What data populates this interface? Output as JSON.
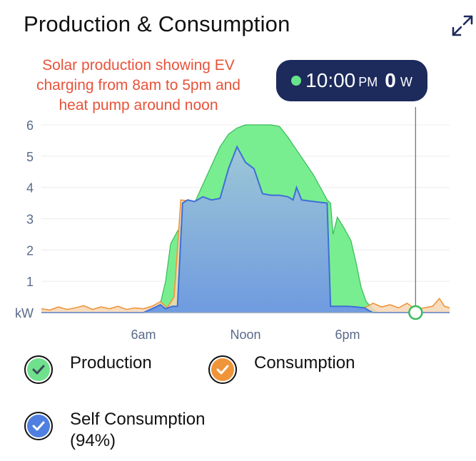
{
  "header": {
    "title": "Production & Consumption"
  },
  "annotation": {
    "lines": [
      "Solar production showing EV",
      "charging from 8am to 5pm and",
      "heat pump around noon"
    ]
  },
  "tooltip": {
    "time": "10:00",
    "ampm": "PM",
    "value": "0",
    "unit": "W"
  },
  "legend": [
    {
      "label": "Production",
      "label2": "",
      "color": "#6fe08c"
    },
    {
      "label": "Consumption",
      "label2": "",
      "color": "#f0943a"
    },
    {
      "label": "Self Consumption",
      "label2": "(94%)",
      "color": "#4f7fe0"
    }
  ],
  "chart_data": {
    "type": "area",
    "ylabel": "kW",
    "yticks": [
      "1",
      "2",
      "3",
      "4",
      "5",
      "6"
    ],
    "ylim": [
      0,
      6
    ],
    "xlim": [
      0,
      24
    ],
    "xticks": [
      {
        "label": "6am",
        "x": 6
      },
      {
        "label": "Noon",
        "x": 12
      },
      {
        "label": "6pm",
        "x": 18
      }
    ],
    "cursor_x": 22,
    "grid": true,
    "series": [
      {
        "name": "Production",
        "color": "#6fe08c",
        "points": [
          [
            0,
            0
          ],
          [
            6.3,
            0
          ],
          [
            6.6,
            0.1
          ],
          [
            7.0,
            0.3
          ],
          [
            7.3,
            1.0
          ],
          [
            7.6,
            2.2
          ],
          [
            8.0,
            2.6
          ],
          [
            8.5,
            3.0
          ],
          [
            9.0,
            3.5
          ],
          [
            9.5,
            4.1
          ],
          [
            10.0,
            4.7
          ],
          [
            10.5,
            5.3
          ],
          [
            11.0,
            5.7
          ],
          [
            11.5,
            5.9
          ],
          [
            12.0,
            6.0
          ],
          [
            12.5,
            6.0
          ],
          [
            13.0,
            6.0
          ],
          [
            13.5,
            6.0
          ],
          [
            14.0,
            5.95
          ],
          [
            14.5,
            5.6
          ],
          [
            15.0,
            5.2
          ],
          [
            15.5,
            4.8
          ],
          [
            16.0,
            4.4
          ],
          [
            16.5,
            3.9
          ],
          [
            16.8,
            3.6
          ],
          [
            17.0,
            3.5
          ],
          [
            17.15,
            2.5
          ],
          [
            17.4,
            3.05
          ],
          [
            17.8,
            2.7
          ],
          [
            18.2,
            2.3
          ],
          [
            18.5,
            1.6
          ],
          [
            18.8,
            0.8
          ],
          [
            19.1,
            0.35
          ],
          [
            19.5,
            0.1
          ],
          [
            19.8,
            0
          ],
          [
            24,
            0
          ]
        ]
      },
      {
        "name": "Consumption",
        "color": "#f0943a",
        "points": [
          [
            0,
            0.12
          ],
          [
            0.5,
            0.08
          ],
          [
            1,
            0.18
          ],
          [
            1.5,
            0.1
          ],
          [
            2,
            0.15
          ],
          [
            2.5,
            0.22
          ],
          [
            3,
            0.1
          ],
          [
            3.5,
            0.18
          ],
          [
            4,
            0.12
          ],
          [
            4.5,
            0.2
          ],
          [
            5,
            0.1
          ],
          [
            5.5,
            0.15
          ],
          [
            6,
            0.12
          ],
          [
            6.5,
            0.2
          ],
          [
            7.0,
            0.35
          ],
          [
            7.4,
            0.15
          ],
          [
            7.8,
            0.5
          ],
          [
            8.2,
            3.6
          ],
          [
            9.0,
            3.55
          ],
          [
            9.5,
            3.7
          ],
          [
            10.0,
            3.6
          ],
          [
            10.5,
            3.65
          ],
          [
            11.0,
            4.6
          ],
          [
            11.5,
            5.3
          ],
          [
            12.0,
            4.8
          ],
          [
            12.5,
            4.6
          ],
          [
            13.0,
            3.8
          ],
          [
            13.5,
            3.75
          ],
          [
            14.0,
            3.75
          ],
          [
            14.5,
            3.7
          ],
          [
            14.8,
            3.6
          ],
          [
            15.0,
            4.0
          ],
          [
            15.3,
            3.6
          ],
          [
            16.0,
            3.55
          ],
          [
            16.8,
            3.5
          ],
          [
            17.0,
            0.2
          ],
          [
            17.5,
            0.2
          ],
          [
            18.0,
            0.2
          ],
          [
            18.5,
            0.18
          ],
          [
            19.0,
            0.15
          ],
          [
            19.5,
            0.3
          ],
          [
            20.0,
            0.18
          ],
          [
            20.5,
            0.25
          ],
          [
            21.0,
            0.15
          ],
          [
            21.5,
            0.3
          ],
          [
            22.0,
            0.1
          ],
          [
            22.5,
            0.15
          ],
          [
            23.0,
            0.2
          ],
          [
            23.4,
            0.45
          ],
          [
            23.7,
            0.2
          ],
          [
            24,
            0.15
          ]
        ]
      },
      {
        "name": "Self Consumption",
        "color": "#4f7fe0",
        "points": [
          [
            0,
            0
          ],
          [
            6.0,
            0
          ],
          [
            6.5,
            0.12
          ],
          [
            7.0,
            0.25
          ],
          [
            7.3,
            0.12
          ],
          [
            7.7,
            0.2
          ],
          [
            8.0,
            0.2
          ],
          [
            8.3,
            3.5
          ],
          [
            8.6,
            3.6
          ],
          [
            9.0,
            3.55
          ],
          [
            9.5,
            3.7
          ],
          [
            10.0,
            3.6
          ],
          [
            10.5,
            3.65
          ],
          [
            11.0,
            4.6
          ],
          [
            11.5,
            5.3
          ],
          [
            12.0,
            4.8
          ],
          [
            12.5,
            4.6
          ],
          [
            13.0,
            3.8
          ],
          [
            13.5,
            3.75
          ],
          [
            14.0,
            3.75
          ],
          [
            14.5,
            3.7
          ],
          [
            14.8,
            3.6
          ],
          [
            15.0,
            4.0
          ],
          [
            15.3,
            3.6
          ],
          [
            16.0,
            3.55
          ],
          [
            16.8,
            3.5
          ],
          [
            17.0,
            0.2
          ],
          [
            17.5,
            0.2
          ],
          [
            18.0,
            0.2
          ],
          [
            18.5,
            0.18
          ],
          [
            19.0,
            0.15
          ],
          [
            19.3,
            0.05
          ],
          [
            19.5,
            0
          ],
          [
            24,
            0
          ]
        ]
      }
    ]
  }
}
